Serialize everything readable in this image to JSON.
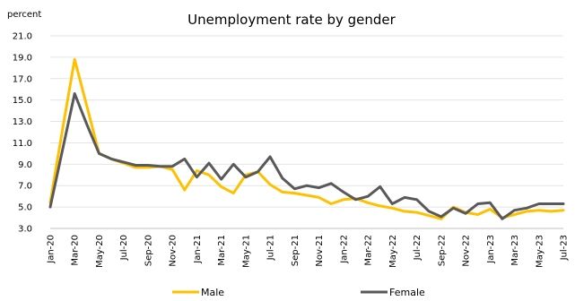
{
  "chart_data": {
    "type": "line",
    "title": "Unemployment  rate by gender",
    "ylabel": "percent",
    "xlabel": "",
    "ylim": [
      3.0,
      21.0
    ],
    "yticks": [
      "3.0",
      "5.0",
      "7.0",
      "9.0",
      "11.0",
      "13.0",
      "15.0",
      "17.0",
      "19.0",
      "21.0"
    ],
    "x": [
      "Jan-20",
      "Feb-20",
      "Mar-20",
      "Apr-20",
      "May-20",
      "Jun-20",
      "Jul-20",
      "Aug-20",
      "Sep-20",
      "Oct-20",
      "Nov-20",
      "Dec-20",
      "Jan-21",
      "Feb-21",
      "Mar-21",
      "Apr-21",
      "May-21",
      "Jun-21",
      "Jul-21",
      "Aug-21",
      "Sep-21",
      "Oct-21",
      "Nov-21",
      "Dec-21",
      "Jan-22",
      "Feb-22",
      "Mar-22",
      "Apr-22",
      "May-22",
      "Jun-22",
      "Jul-22",
      "Aug-22",
      "Sep-22",
      "Oct-22",
      "Nov-22",
      "Dec-22",
      "Jan-23",
      "Feb-23",
      "Mar-23",
      "Apr-23",
      "May-23",
      "Jun-23",
      "Jul-23"
    ],
    "xtick_labels": [
      "Jan-20",
      "Mar-20",
      "May-20",
      "Jul-20",
      "Sep-20",
      "Nov-20",
      "Jan-21",
      "Mar-21",
      "May-21",
      "Jul-21",
      "Sep-21",
      "Nov-21",
      "Jan-22",
      "Mar-22",
      "May-22",
      "Jul-22",
      "Sep-22",
      "Nov-22",
      "Jan-23",
      "Mar-23",
      "May-23",
      "Jul-23"
    ],
    "grid": true,
    "legend_position": "bottom",
    "series": [
      {
        "name": "Male",
        "color": "#FFC000",
        "values": [
          5.4,
          12.2,
          18.8,
          14.4,
          10.0,
          9.5,
          9.1,
          8.7,
          8.7,
          8.8,
          8.5,
          6.6,
          8.4,
          8.0,
          6.9,
          6.3,
          8.0,
          8.3,
          7.1,
          6.4,
          6.3,
          6.1,
          5.9,
          5.3,
          5.7,
          5.8,
          5.4,
          5.1,
          4.9,
          4.6,
          4.5,
          4.2,
          3.9,
          5.0,
          4.5,
          4.3,
          4.8,
          4.0,
          4.3,
          4.6,
          4.7,
          4.6,
          4.7
        ]
      },
      {
        "name": "Female",
        "color": "#595959",
        "values": [
          5.0,
          10.3,
          15.6,
          12.7,
          10.0,
          9.5,
          9.2,
          8.9,
          8.9,
          8.8,
          8.8,
          9.5,
          7.8,
          9.1,
          7.6,
          9.0,
          7.8,
          8.3,
          9.7,
          7.7,
          6.7,
          7.0,
          6.8,
          7.2,
          6.4,
          5.7,
          6.0,
          6.9,
          5.3,
          5.9,
          5.7,
          4.6,
          4.1,
          4.9,
          4.4,
          5.3,
          5.4,
          3.9,
          4.7,
          4.9,
          5.3,
          5.3,
          5.3
        ]
      }
    ]
  }
}
